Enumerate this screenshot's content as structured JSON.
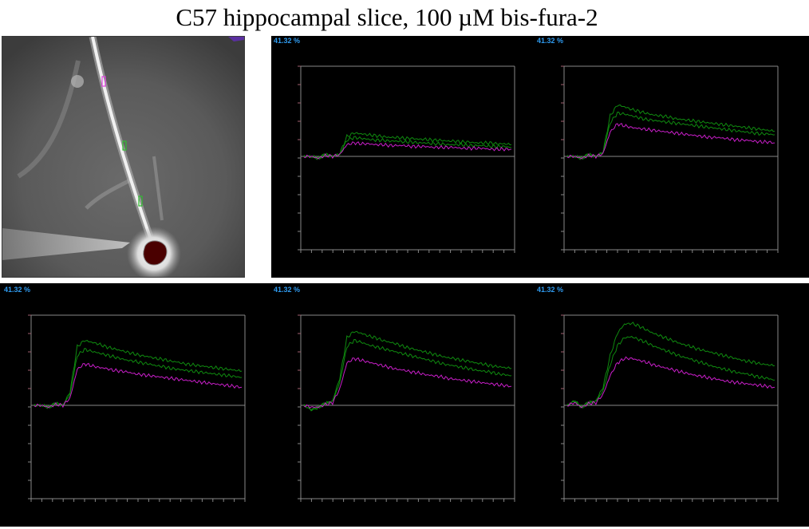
{
  "title": "C57 hippocampal slice, 100 µM bis-fura-2",
  "colors": {
    "trace_green": "#0f8a0f",
    "trace_magenta": "#c81ec8",
    "axis_gray": "#888888",
    "background": "#000000",
    "percent_label": "#2f9bf0",
    "roi_magenta": "#e23fe2",
    "roi_green": "#2fbf2f",
    "cell_body": "#4a0000"
  },
  "image_panel": {
    "type": "fluorescence-image",
    "rois": [
      {
        "color": "magenta"
      },
      {
        "color": "green"
      },
      {
        "color": "green"
      }
    ]
  },
  "chart_data": [
    {
      "type": "line",
      "scale_label": "41.32 %",
      "series": [
        {
          "color": "green",
          "values": [
            0,
            0,
            -0.02,
            0.02,
            0,
            0.03,
            0.22,
            0.26,
            0.25,
            0.24,
            0.23,
            0.22,
            0.21,
            0.21,
            0.2,
            0.2,
            0.19,
            0.19,
            0.18,
            0.18,
            0.17,
            0.17,
            0.16,
            0.16,
            0.15,
            0.15,
            0.15,
            0.14,
            0.14,
            0.13
          ]
        },
        {
          "color": "green",
          "values": [
            0,
            0,
            -0.02,
            0.02,
            0,
            0.02,
            0.18,
            0.21,
            0.2,
            0.19,
            0.18,
            0.18,
            0.17,
            0.17,
            0.16,
            0.16,
            0.15,
            0.15,
            0.14,
            0.14,
            0.13,
            0.13,
            0.13,
            0.12,
            0.12,
            0.12,
            0.11,
            0.11,
            0.11,
            0.1
          ]
        },
        {
          "color": "magenta",
          "values": [
            0,
            0,
            -0.02,
            0.01,
            0,
            0.02,
            0.13,
            0.15,
            0.14,
            0.14,
            0.13,
            0.13,
            0.12,
            0.12,
            0.12,
            0.11,
            0.11,
            0.11,
            0.1,
            0.1,
            0.1,
            0.1,
            0.09,
            0.09,
            0.09,
            0.09,
            0.08,
            0.08,
            0.08,
            0.08
          ]
        }
      ]
    },
    {
      "type": "line",
      "scale_label": "41.32 %",
      "series": [
        {
          "color": "green",
          "values": [
            0,
            0,
            -0.02,
            0.02,
            0,
            0.05,
            0.45,
            0.57,
            0.55,
            0.52,
            0.5,
            0.48,
            0.46,
            0.45,
            0.44,
            0.42,
            0.41,
            0.4,
            0.39,
            0.38,
            0.37,
            0.36,
            0.35,
            0.34,
            0.33,
            0.32,
            0.31,
            0.3,
            0.29,
            0.28
          ]
        },
        {
          "color": "green",
          "values": [
            0,
            0,
            -0.02,
            0.02,
            0,
            0.04,
            0.37,
            0.48,
            0.47,
            0.45,
            0.43,
            0.41,
            0.4,
            0.39,
            0.38,
            0.37,
            0.36,
            0.35,
            0.34,
            0.33,
            0.32,
            0.31,
            0.3,
            0.29,
            0.28,
            0.27,
            0.26,
            0.25,
            0.25,
            0.24
          ]
        },
        {
          "color": "magenta",
          "values": [
            0,
            0,
            -0.02,
            0.01,
            0,
            0.03,
            0.27,
            0.36,
            0.34,
            0.32,
            0.31,
            0.3,
            0.29,
            0.28,
            0.27,
            0.26,
            0.25,
            0.24,
            0.23,
            0.22,
            0.21,
            0.21,
            0.2,
            0.19,
            0.18,
            0.18,
            0.17,
            0.16,
            0.16,
            0.15
          ]
        }
      ]
    },
    {
      "type": "line",
      "scale_label": "41.32 %",
      "series": [
        {
          "color": "green",
          "values": [
            0,
            0,
            -0.02,
            0.02,
            0,
            0.15,
            0.65,
            0.72,
            0.7,
            0.68,
            0.65,
            0.63,
            0.61,
            0.59,
            0.57,
            0.55,
            0.54,
            0.52,
            0.51,
            0.49,
            0.48,
            0.46,
            0.45,
            0.44,
            0.43,
            0.42,
            0.41,
            0.4,
            0.39,
            0.38
          ]
        },
        {
          "color": "green",
          "values": [
            0,
            0,
            -0.02,
            0.02,
            0,
            0.12,
            0.55,
            0.62,
            0.6,
            0.58,
            0.56,
            0.54,
            0.52,
            0.5,
            0.49,
            0.47,
            0.46,
            0.44,
            0.43,
            0.41,
            0.4,
            0.39,
            0.38,
            0.37,
            0.36,
            0.35,
            0.34,
            0.33,
            0.32,
            0.31
          ]
        },
        {
          "color": "magenta",
          "values": [
            0,
            0,
            -0.02,
            0.01,
            0,
            0.08,
            0.4,
            0.46,
            0.44,
            0.42,
            0.41,
            0.39,
            0.38,
            0.37,
            0.35,
            0.34,
            0.33,
            0.32,
            0.31,
            0.3,
            0.29,
            0.28,
            0.27,
            0.26,
            0.25,
            0.24,
            0.23,
            0.22,
            0.21,
            0.2
          ]
        }
      ]
    },
    {
      "type": "line",
      "scale_label": "41.32 %",
      "series": [
        {
          "color": "green",
          "values": [
            0,
            -0.05,
            -0.02,
            0.02,
            0.05,
            0.3,
            0.75,
            0.82,
            0.8,
            0.77,
            0.75,
            0.72,
            0.7,
            0.68,
            0.65,
            0.63,
            0.61,
            0.59,
            0.57,
            0.55,
            0.53,
            0.52,
            0.5,
            0.49,
            0.47,
            0.46,
            0.44,
            0.43,
            0.42,
            0.41
          ]
        },
        {
          "color": "green",
          "values": [
            0,
            -0.05,
            -0.02,
            0.02,
            0.04,
            0.25,
            0.65,
            0.72,
            0.7,
            0.67,
            0.65,
            0.63,
            0.61,
            0.59,
            0.57,
            0.55,
            0.53,
            0.51,
            0.49,
            0.47,
            0.45,
            0.44,
            0.42,
            0.41,
            0.39,
            0.38,
            0.37,
            0.35,
            0.34,
            0.33
          ]
        },
        {
          "color": "magenta",
          "values": [
            0,
            -0.02,
            -0.02,
            0.01,
            0.03,
            0.18,
            0.47,
            0.52,
            0.5,
            0.48,
            0.46,
            0.44,
            0.42,
            0.4,
            0.39,
            0.37,
            0.36,
            0.34,
            0.33,
            0.32,
            0.3,
            0.29,
            0.28,
            0.27,
            0.26,
            0.25,
            0.24,
            0.23,
            0.22,
            0.21
          ]
        }
      ]
    },
    {
      "type": "line",
      "scale_label": "41.32 %",
      "series": [
        {
          "color": "green",
          "values": [
            0,
            0.05,
            -0.02,
            0.03,
            0.05,
            0.2,
            0.55,
            0.8,
            0.9,
            0.91,
            0.88,
            0.84,
            0.8,
            0.77,
            0.74,
            0.71,
            0.68,
            0.66,
            0.63,
            0.61,
            0.59,
            0.57,
            0.55,
            0.53,
            0.51,
            0.49,
            0.48,
            0.46,
            0.45,
            0.44
          ]
        },
        {
          "color": "green",
          "values": [
            0,
            0.05,
            -0.02,
            0.03,
            0.04,
            0.16,
            0.45,
            0.66,
            0.75,
            0.76,
            0.73,
            0.7,
            0.66,
            0.63,
            0.6,
            0.57,
            0.54,
            0.52,
            0.49,
            0.47,
            0.44,
            0.42,
            0.4,
            0.38,
            0.36,
            0.35,
            0.33,
            0.31,
            0.3,
            0.28
          ]
        },
        {
          "color": "magenta",
          "values": [
            0,
            0.03,
            -0.02,
            0.02,
            0.03,
            0.12,
            0.33,
            0.47,
            0.52,
            0.52,
            0.5,
            0.48,
            0.45,
            0.43,
            0.41,
            0.39,
            0.37,
            0.35,
            0.33,
            0.32,
            0.3,
            0.29,
            0.27,
            0.26,
            0.25,
            0.24,
            0.23,
            0.22,
            0.21,
            0.2
          ]
        }
      ]
    }
  ]
}
